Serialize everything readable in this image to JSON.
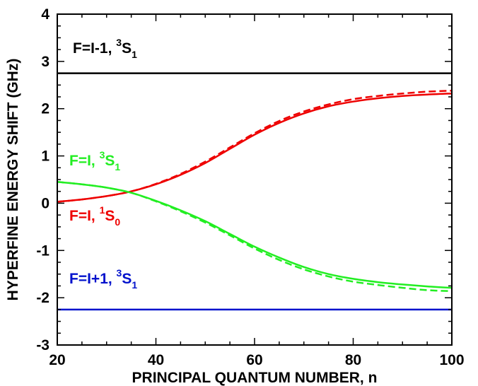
{
  "chart_data": {
    "type": "line",
    "xlabel": "PRINCIPAL QUANTUM NUMBER, n",
    "ylabel": "HYPERFINE ENERGY SHIFT (GHz)",
    "xlim": [
      20,
      100
    ],
    "ylim": [
      -3,
      4
    ],
    "xticks": [
      "20",
      "40",
      "60",
      "80",
      "100"
    ],
    "yticks": [
      "-3",
      "-2",
      "-1",
      "0",
      "1",
      "2",
      "3",
      "4"
    ],
    "grid": false,
    "colors": {
      "black": "#000000",
      "red": "#ee0000",
      "green": "#22ee22",
      "blue": "#0011cc"
    },
    "annotations": [
      {
        "id": "a1",
        "main": "F=I-1, ",
        "sup": "3",
        "letter": "S",
        "sub": "1",
        "color": "#000000"
      },
      {
        "id": "a2",
        "main": "F=I, ",
        "sup": "3",
        "letter": "S",
        "sub": "1",
        "color": "#22ee22"
      },
      {
        "id": "a3",
        "main": "F=I, ",
        "sup": "1",
        "letter": "S",
        "sub": "0",
        "color": "#ee0000"
      },
      {
        "id": "a4",
        "main": "F=I+1, ",
        "sup": "3",
        "letter": "S",
        "sub": "1",
        "color": "#0011cc"
      }
    ],
    "series": [
      {
        "color": "#000000",
        "dash": false,
        "x": [
          20,
          100
        ],
        "y": [
          2.75,
          2.75
        ]
      },
      {
        "color": "#0011cc",
        "dash": false,
        "x": [
          20,
          100
        ],
        "y": [
          -2.25,
          -2.25
        ]
      },
      {
        "color": "#ee0000",
        "dash": false,
        "x": [
          20,
          25,
          30,
          35,
          40,
          45,
          50,
          55,
          60,
          65,
          70,
          75,
          80,
          85,
          90,
          95,
          100
        ],
        "y": [
          0.03,
          0.08,
          0.15,
          0.25,
          0.4,
          0.6,
          0.85,
          1.15,
          1.45,
          1.7,
          1.9,
          2.05,
          2.15,
          2.22,
          2.27,
          2.3,
          2.32
        ]
      },
      {
        "color": "#ee0000",
        "dash": true,
        "x": [
          20,
          25,
          30,
          35,
          40,
          45,
          50,
          55,
          60,
          65,
          70,
          75,
          80,
          85,
          90,
          95,
          100
        ],
        "y": [
          0.03,
          0.08,
          0.15,
          0.25,
          0.41,
          0.62,
          0.88,
          1.18,
          1.48,
          1.74,
          1.94,
          2.09,
          2.2,
          2.27,
          2.32,
          2.36,
          2.38
        ]
      },
      {
        "color": "#22ee22",
        "dash": false,
        "x": [
          20,
          25,
          30,
          35,
          40,
          45,
          50,
          55,
          60,
          65,
          70,
          75,
          80,
          85,
          90,
          95,
          100
        ],
        "y": [
          0.45,
          0.4,
          0.33,
          0.22,
          0.05,
          -0.15,
          -0.38,
          -0.65,
          -0.92,
          -1.15,
          -1.35,
          -1.5,
          -1.6,
          -1.67,
          -1.72,
          -1.76,
          -1.79
        ]
      },
      {
        "color": "#22ee22",
        "dash": true,
        "x": [
          20,
          25,
          30,
          35,
          40,
          45,
          50,
          55,
          60,
          65,
          70,
          75,
          80,
          85,
          90,
          95,
          100
        ],
        "y": [
          0.45,
          0.4,
          0.33,
          0.22,
          0.04,
          -0.17,
          -0.41,
          -0.68,
          -0.96,
          -1.2,
          -1.4,
          -1.55,
          -1.66,
          -1.73,
          -1.79,
          -1.84,
          -1.86
        ]
      }
    ]
  }
}
